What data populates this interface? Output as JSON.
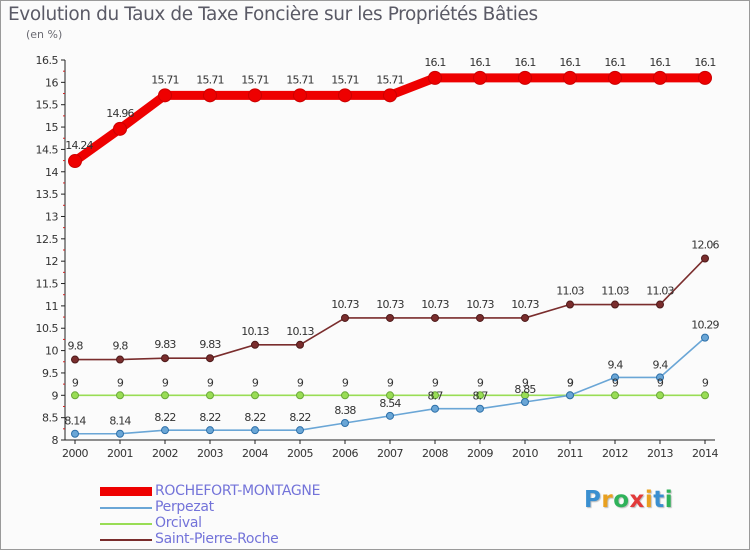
{
  "chart_data": {
    "type": "line",
    "title": "Evolution du Taux de Taxe Foncière sur les Propriétés Bâties",
    "unit_label": "(en %)",
    "xlabel": "",
    "ylabel": "",
    "ylim": [
      8,
      16.5
    ],
    "y_ticks": [
      "8",
      "8.5",
      "9",
      "9.5",
      "10",
      "10.5",
      "11",
      "11.5",
      "12",
      "12.5",
      "13",
      "13.5",
      "14",
      "14.5",
      "15",
      "15.5",
      "16",
      "16.5"
    ],
    "categories": [
      "2000",
      "2001",
      "2002",
      "2003",
      "2004",
      "2005",
      "2006",
      "2007",
      "2008",
      "2009",
      "2010",
      "2011",
      "2012",
      "2013",
      "2014"
    ],
    "series": [
      {
        "name": "ROCHEFORT-MONTAGNE",
        "color": "#ee0000",
        "values": [
          14.24,
          14.96,
          15.71,
          15.71,
          15.71,
          15.71,
          15.71,
          15.71,
          16.1,
          16.1,
          16.1,
          16.1,
          16.1,
          16.1,
          16.1
        ],
        "labels": [
          "14.24",
          "14.96",
          "15.71",
          "15.71",
          "15.71",
          "15.71",
          "15.71",
          "15.71",
          "16.1",
          "16.1",
          "16.1",
          "16.1",
          "16.1",
          "16.1",
          "16.1"
        ]
      },
      {
        "name": "Perpezat",
        "color": "#6aa6d6",
        "values": [
          8.14,
          8.14,
          8.22,
          8.22,
          8.22,
          8.22,
          8.38,
          8.54,
          8.7,
          8.7,
          8.85,
          9,
          9.4,
          9.4,
          10.29
        ],
        "labels": [
          "8.14",
          "8.14",
          "8.22",
          "8.22",
          "8.22",
          "8.22",
          "8.38",
          "8.54",
          "8.7",
          "8.7",
          "8.85",
          "9",
          "9.4",
          "9.4",
          "10.29"
        ]
      },
      {
        "name": "Orcival",
        "color": "#99dd55",
        "values": [
          9,
          9,
          9,
          9,
          9,
          9,
          9,
          9,
          9,
          9,
          9,
          9,
          9,
          9,
          9
        ],
        "labels": [
          "9",
          "9",
          "9",
          "9",
          "9",
          "9",
          "9",
          "9",
          "9",
          "9",
          "9",
          "9",
          "9",
          "9",
          "9"
        ]
      },
      {
        "name": "Saint-Pierre-Roche",
        "color": "#7a2d2d",
        "values": [
          9.8,
          9.8,
          9.83,
          9.83,
          10.13,
          10.13,
          10.73,
          10.73,
          10.73,
          10.73,
          10.73,
          11.03,
          11.03,
          11.03,
          12.06
        ],
        "labels": [
          "9.8",
          "9.8",
          "9.83",
          "9.83",
          "10.13",
          "10.13",
          "10.73",
          "10.73",
          "10.73",
          "10.73",
          "10.73",
          "11.03",
          "11.03",
          "11.03",
          "12.06"
        ]
      }
    ],
    "legend_position": "bottom-left",
    "grid": false
  },
  "logo": {
    "text": "Proxiti",
    "colors": [
      "#3a8fd0",
      "#e8a020",
      "#2fb25a",
      "#e23a3a",
      "#e8a020",
      "#3a8fd0",
      "#2fb25a"
    ]
  }
}
